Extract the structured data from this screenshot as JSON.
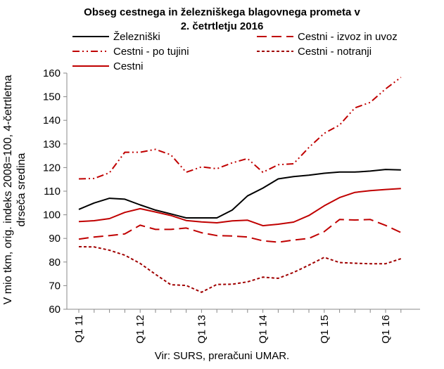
{
  "chart_data": {
    "type": "line",
    "title": [
      "Obseg cestnega in železniškega blagovnega prometa v",
      "2. četrtletju 2016"
    ],
    "ylabel": "V mio tkm, orig. indeks 2008=100, 4-četrtletna drseča sredina",
    "source": "Vir: SURS, preračuni UMAR.",
    "ylim": [
      60,
      160
    ],
    "yticks": [
      60,
      70,
      80,
      90,
      100,
      110,
      120,
      130,
      140,
      150,
      160
    ],
    "xtick_labels": [
      "Q1 11",
      "Q1 12",
      "Q1 13",
      "Q1 14",
      "Q1 15",
      "Q1 16"
    ],
    "xtick_positions": [
      0,
      4,
      8,
      12,
      16,
      20
    ],
    "n_points": 22,
    "grid": false,
    "legend_placement": "top",
    "series": [
      {
        "name": "Železniški",
        "color": "#000000",
        "style": "solid",
        "values": [
          102.3,
          105.0,
          107.0,
          106.6,
          104.2,
          102.0,
          100.4,
          98.7,
          98.7,
          98.7,
          102.0,
          108.0,
          111.3,
          115.2,
          116.2,
          116.8,
          117.6,
          118.1,
          118.1,
          118.5,
          119.2,
          119.0
        ]
      },
      {
        "name": "Cestni - izvoz in uvoz",
        "color": "#c00000",
        "style": "dash",
        "values": [
          89.7,
          90.6,
          91.2,
          91.9,
          95.6,
          93.8,
          93.8,
          94.4,
          92.4,
          91.2,
          91.0,
          90.6,
          89.0,
          88.4,
          89.3,
          90.0,
          92.9,
          98.0,
          97.8,
          98.0,
          95.5,
          92.5
        ]
      },
      {
        "name": "Cestni - po tujini",
        "color": "#c00000",
        "style": "dashdotdot",
        "values": [
          115.2,
          115.4,
          117.8,
          126.5,
          126.5,
          127.7,
          125.4,
          118.0,
          120.3,
          119.5,
          122.0,
          123.8,
          118.0,
          121.2,
          121.6,
          128.5,
          134.5,
          138.0,
          145.3,
          147.6,
          153.3,
          158.2
        ]
      },
      {
        "name": "Cestni - notranji",
        "color": "#a00000",
        "style": "dot",
        "values": [
          86.5,
          86.4,
          85.0,
          82.9,
          79.4,
          74.8,
          70.4,
          70.1,
          67.2,
          70.5,
          70.6,
          71.6,
          73.6,
          73.1,
          75.6,
          78.7,
          82.0,
          79.8,
          79.5,
          79.3,
          79.3,
          81.4
        ]
      },
      {
        "name": "Cestni",
        "color": "#c00000",
        "style": "solid",
        "values": [
          97.1,
          97.5,
          98.4,
          101.0,
          102.6,
          101.2,
          99.7,
          97.6,
          97.0,
          96.6,
          97.4,
          97.7,
          95.4,
          96.0,
          96.9,
          99.7,
          103.8,
          107.3,
          109.5,
          110.2,
          110.7,
          111.1
        ]
      }
    ]
  }
}
